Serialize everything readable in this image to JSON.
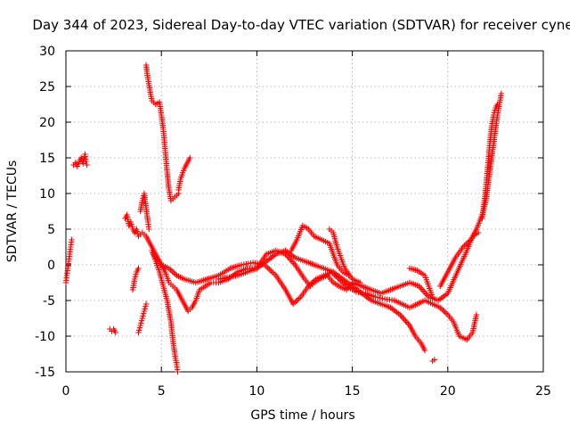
{
  "chart_data": {
    "type": "scatter",
    "title": "Day 344 of 2023, Sidereal Day-to-day VTEC variation (SDTVAR) for receiver cyne",
    "xlabel": "GPS time / hours",
    "ylabel": "SDTVAR / TECUs",
    "xlim": [
      0,
      25
    ],
    "ylim": [
      -15,
      30
    ],
    "xticks": [
      "0",
      "5",
      "10",
      "15",
      "20",
      "25"
    ],
    "yticks": [
      "-15",
      "-10",
      "-5",
      "0",
      "5",
      "10",
      "15",
      "20",
      "25",
      "30"
    ],
    "grid": true,
    "marker": "plus",
    "color": "#ff0000",
    "series": [
      {
        "name": "s1",
        "points": [
          [
            0.0,
            -2.5
          ],
          [
            0.05,
            -1.5
          ],
          [
            0.1,
            -0.5
          ],
          [
            0.15,
            0.5
          ],
          [
            0.2,
            1.5
          ],
          [
            0.25,
            2.5
          ],
          [
            0.3,
            3.5
          ]
        ]
      },
      {
        "name": "s2",
        "points": [
          [
            0.4,
            14.0
          ],
          [
            0.5,
            14.3
          ],
          [
            0.6,
            13.8
          ],
          [
            0.7,
            14.5
          ],
          [
            0.8,
            15.0
          ],
          [
            0.9,
            14.2
          ],
          [
            1.0,
            15.5
          ],
          [
            1.05,
            14.5
          ],
          [
            1.1,
            14.0
          ]
        ]
      },
      {
        "name": "s3",
        "points": [
          [
            2.3,
            -9.0
          ],
          [
            2.4,
            -9.3
          ],
          [
            2.5,
            -9.0
          ],
          [
            2.6,
            -9.5
          ]
        ]
      },
      {
        "name": "s4",
        "points": [
          [
            3.1,
            6.5
          ],
          [
            3.2,
            7.0
          ],
          [
            3.3,
            5.5
          ],
          [
            3.4,
            6.0
          ],
          [
            3.5,
            5.0
          ],
          [
            3.6,
            4.5
          ],
          [
            3.7,
            5.0
          ],
          [
            3.8,
            4.0
          ],
          [
            4.0,
            4.5
          ],
          [
            4.2,
            4.0
          ],
          [
            4.4,
            3.0
          ],
          [
            4.6,
            2.0
          ],
          [
            4.8,
            1.0
          ],
          [
            5.0,
            0.0
          ],
          [
            5.2,
            -1.0
          ],
          [
            5.4,
            -2.5
          ],
          [
            5.6,
            -3.0
          ],
          [
            5.8,
            -3.5
          ],
          [
            6.0,
            -4.5
          ],
          [
            6.2,
            -5.5
          ],
          [
            6.4,
            -6.5
          ],
          [
            6.6,
            -6.0
          ],
          [
            6.8,
            -5.0
          ],
          [
            7.0,
            -3.5
          ],
          [
            7.3,
            -3.0
          ],
          [
            7.6,
            -2.5
          ],
          [
            8.0,
            -2.5
          ],
          [
            8.5,
            -2.0
          ],
          [
            9.0,
            -1.0
          ],
          [
            9.5,
            -0.5
          ],
          [
            10.0,
            -0.5
          ],
          [
            10.5,
            0.5
          ],
          [
            11.0,
            1.5
          ],
          [
            11.5,
            2.0
          ],
          [
            12.0,
            1.0
          ],
          [
            12.5,
            0.5
          ],
          [
            13.0,
            0.0
          ],
          [
            13.5,
            -0.5
          ],
          [
            14.0,
            -1.0
          ],
          [
            14.5,
            -2.0
          ],
          [
            15.0,
            -3.0
          ],
          [
            15.5,
            -4.0
          ],
          [
            16.0,
            -5.0
          ],
          [
            16.5,
            -5.5
          ],
          [
            17.0,
            -6.0
          ],
          [
            17.5,
            -7.0
          ],
          [
            18.0,
            -8.5
          ],
          [
            18.3,
            -10.0
          ],
          [
            18.6,
            -11.0
          ],
          [
            18.8,
            -12.0
          ]
        ]
      },
      {
        "name": "s5",
        "points": [
          [
            3.5,
            -3.5
          ],
          [
            3.6,
            -2.0
          ],
          [
            3.7,
            -1.0
          ],
          [
            3.8,
            -0.5
          ]
        ]
      },
      {
        "name": "s6",
        "points": [
          [
            3.9,
            7.5
          ],
          [
            4.0,
            9.0
          ],
          [
            4.1,
            10.0
          ],
          [
            4.2,
            8.0
          ],
          [
            4.3,
            6.0
          ],
          [
            4.35,
            5.0
          ]
        ]
      },
      {
        "name": "s7",
        "points": [
          [
            3.8,
            -9.5
          ],
          [
            3.9,
            -8.5
          ],
          [
            4.0,
            -7.5
          ],
          [
            4.1,
            -6.5
          ],
          [
            4.2,
            -5.5
          ]
        ]
      },
      {
        "name": "s8",
        "points": [
          [
            4.2,
            28.0
          ],
          [
            4.3,
            26.0
          ],
          [
            4.4,
            24.5
          ],
          [
            4.5,
            23.0
          ],
          [
            4.7,
            22.5
          ],
          [
            4.9,
            22.8
          ],
          [
            5.0,
            21.0
          ],
          [
            5.1,
            19.0
          ],
          [
            5.2,
            16.0
          ],
          [
            5.3,
            13.0
          ],
          [
            5.4,
            10.5
          ],
          [
            5.5,
            9.0
          ],
          [
            5.7,
            9.5
          ],
          [
            5.9,
            10.0
          ]
        ]
      },
      {
        "name": "s9",
        "points": [
          [
            5.9,
            10.5
          ],
          [
            6.0,
            12.0
          ],
          [
            6.2,
            13.5
          ],
          [
            6.4,
            14.5
          ],
          [
            6.5,
            15.0
          ]
        ]
      },
      {
        "name": "s10",
        "points": [
          [
            4.5,
            2.0
          ],
          [
            4.7,
            0.5
          ],
          [
            4.9,
            -1.0
          ],
          [
            5.1,
            -3.0
          ],
          [
            5.3,
            -5.0
          ],
          [
            5.5,
            -8.0
          ],
          [
            5.6,
            -10.5
          ],
          [
            5.7,
            -12.5
          ],
          [
            5.8,
            -14.0
          ],
          [
            5.85,
            -15.0
          ]
        ]
      },
      {
        "name": "s11",
        "points": [
          [
            4.6,
            1.5
          ],
          [
            4.8,
            0.5
          ],
          [
            5.0,
            0.0
          ],
          [
            5.4,
            -0.5
          ],
          [
            5.8,
            -1.5
          ],
          [
            6.2,
            -2.0
          ],
          [
            6.8,
            -2.5
          ],
          [
            7.4,
            -2.0
          ],
          [
            8.0,
            -1.5
          ],
          [
            8.6,
            -0.5
          ],
          [
            9.2,
            0.0
          ],
          [
            9.8,
            0.3
          ],
          [
            10.4,
            0.0
          ],
          [
            11.0,
            -1.5
          ],
          [
            11.5,
            -3.5
          ],
          [
            11.9,
            -5.5
          ],
          [
            12.3,
            -4.5
          ],
          [
            12.7,
            -3.0
          ],
          [
            13.1,
            -2.0
          ],
          [
            13.5,
            -1.5
          ],
          [
            13.9,
            -1.0
          ],
          [
            14.3,
            -2.0
          ],
          [
            14.7,
            -3.0
          ],
          [
            15.2,
            -3.8
          ],
          [
            15.7,
            -4.0
          ],
          [
            16.2,
            -4.5
          ],
          [
            16.7,
            -4.8
          ],
          [
            17.2,
            -5.0
          ],
          [
            17.6,
            -5.5
          ],
          [
            18.0,
            -6.0
          ],
          [
            18.4,
            -5.5
          ],
          [
            18.8,
            -5.0
          ],
          [
            19.2,
            -5.5
          ],
          [
            19.6,
            -6.0
          ],
          [
            20.0,
            -7.0
          ],
          [
            20.3,
            -8.0
          ],
          [
            20.6,
            -10.0
          ],
          [
            21.0,
            -10.5
          ],
          [
            21.3,
            -9.5
          ],
          [
            21.5,
            -7.0
          ]
        ]
      },
      {
        "name": "s12",
        "points": [
          [
            8.0,
            -2.0
          ],
          [
            9.0,
            -1.5
          ],
          [
            10.0,
            -0.5
          ],
          [
            10.5,
            1.5
          ],
          [
            11.0,
            2.0
          ],
          [
            11.5,
            1.5
          ],
          [
            12.0,
            0.0
          ],
          [
            12.5,
            -2.0
          ],
          [
            12.8,
            -3.0
          ],
          [
            13.0,
            -2.5
          ],
          [
            13.3,
            -2.0
          ],
          [
            13.7,
            -1.5
          ],
          [
            14.0,
            -2.5
          ],
          [
            14.3,
            -3.0
          ],
          [
            14.7,
            -3.5
          ],
          [
            15.0,
            -2.5
          ],
          [
            15.5,
            -3.0
          ],
          [
            16.0,
            -3.5
          ],
          [
            16.5,
            -4.0
          ],
          [
            17.0,
            -3.5
          ],
          [
            17.5,
            -3.0
          ],
          [
            18.0,
            -2.5
          ],
          [
            18.5,
            -3.0
          ],
          [
            19.0,
            -4.5
          ],
          [
            19.5,
            -5.0
          ],
          [
            20.0,
            -4.0
          ],
          [
            20.5,
            -1.0
          ],
          [
            21.0,
            2.0
          ],
          [
            21.3,
            4.0
          ],
          [
            21.6,
            4.5
          ]
        ]
      },
      {
        "name": "s13",
        "points": [
          [
            11.8,
            2.0
          ],
          [
            12.1,
            3.5
          ],
          [
            12.4,
            5.5
          ],
          [
            12.7,
            5.0
          ],
          [
            13.0,
            4.0
          ],
          [
            13.4,
            3.5
          ],
          [
            13.8,
            3.0
          ],
          [
            14.2,
            0.0
          ],
          [
            14.5,
            -1.0
          ],
          [
            14.8,
            -1.5
          ]
        ]
      },
      {
        "name": "s14",
        "points": [
          [
            13.8,
            5.0
          ],
          [
            14.0,
            4.5
          ],
          [
            14.2,
            2.5
          ],
          [
            14.4,
            1.0
          ],
          [
            14.6,
            -0.5
          ],
          [
            15.0,
            -2.0
          ],
          [
            15.4,
            -2.5
          ]
        ]
      },
      {
        "name": "s15",
        "points": [
          [
            19.2,
            -13.5
          ],
          [
            19.3,
            -13.3
          ]
        ]
      },
      {
        "name": "s16",
        "points": [
          [
            18.0,
            -0.5
          ],
          [
            18.4,
            -0.8
          ],
          [
            18.8,
            -1.5
          ],
          [
            19.0,
            -3.0
          ],
          [
            19.2,
            -4.5
          ]
        ]
      },
      {
        "name": "s17",
        "points": [
          [
            19.6,
            -3.0
          ],
          [
            20.0,
            -1.0
          ],
          [
            20.4,
            1.0
          ],
          [
            20.8,
            2.5
          ],
          [
            21.2,
            3.5
          ],
          [
            21.5,
            5.0
          ],
          [
            21.8,
            7.0
          ],
          [
            22.0,
            9.0
          ],
          [
            22.1,
            11.0
          ],
          [
            22.2,
            13.0
          ],
          [
            22.3,
            15.0
          ],
          [
            22.4,
            17.0
          ],
          [
            22.5,
            19.0
          ],
          [
            22.6,
            21.0
          ],
          [
            22.7,
            22.5
          ],
          [
            22.8,
            24.0
          ]
        ]
      },
      {
        "name": "s18",
        "points": [
          [
            21.8,
            6.5
          ],
          [
            22.0,
            11.0
          ],
          [
            22.1,
            14.0
          ],
          [
            22.2,
            17.0
          ],
          [
            22.3,
            19.5
          ],
          [
            22.4,
            21.0
          ],
          [
            22.5,
            22.0
          ],
          [
            22.6,
            22.5
          ]
        ]
      }
    ]
  }
}
